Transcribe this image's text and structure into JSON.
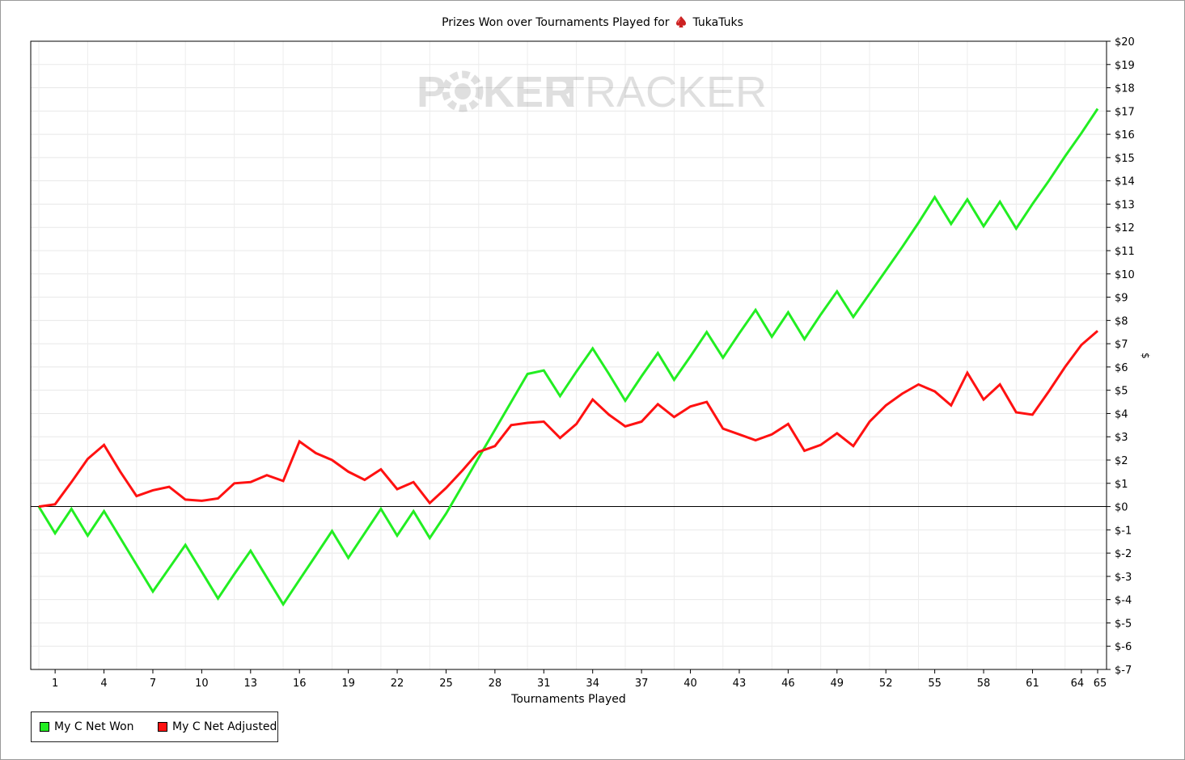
{
  "chart_data": {
    "type": "line",
    "title_prefix": "Prizes Won over Tournaments Played for",
    "player": "TukaTuks",
    "watermark": {
      "left": "P",
      "mid": "KER",
      "right": "TRACKER"
    },
    "xlabel": "Tournaments Played",
    "ylabel": "$",
    "xlim": [
      0,
      65
    ],
    "ylim": [
      -7,
      20
    ],
    "x_ticks": [
      1,
      4,
      7,
      10,
      13,
      16,
      19,
      22,
      25,
      28,
      31,
      34,
      37,
      40,
      43,
      46,
      49,
      52,
      55,
      58,
      61,
      64,
      65
    ],
    "y_ticks": [
      -7,
      -6,
      -5,
      -4,
      -3,
      -2,
      -1,
      0,
      1,
      2,
      3,
      4,
      5,
      6,
      7,
      8,
      9,
      10,
      11,
      12,
      13,
      14,
      15,
      16,
      17,
      18,
      19,
      20
    ],
    "y_tick_labels": [
      "$-7",
      "$-6",
      "$-5",
      "$-4",
      "$-3",
      "$-2",
      "$-1",
      "$0",
      "$1",
      "$2",
      "$3",
      "$4",
      "$5",
      "$6",
      "$7",
      "$8",
      "$9",
      "$10",
      "$11",
      "$12",
      "$13",
      "$14",
      "$15",
      "$16",
      "$17",
      "$18",
      "$19",
      "$20"
    ],
    "grid": true,
    "legend_position": "bottom-left",
    "series": [
      {
        "name": "My C Net Won",
        "color": "#22ee22",
        "x": [
          0,
          1,
          2,
          3,
          4,
          5,
          6,
          7,
          8,
          9,
          10,
          11,
          12,
          13,
          14,
          15,
          16,
          17,
          18,
          19,
          20,
          21,
          22,
          23,
          24,
          25,
          26,
          27,
          28,
          29,
          30,
          31,
          32,
          33,
          34,
          35,
          36,
          37,
          38,
          39,
          40,
          41,
          42,
          43,
          44,
          45,
          46,
          47,
          48,
          49,
          50,
          51,
          52,
          53,
          54,
          55,
          56,
          57,
          58,
          59,
          60,
          61,
          62,
          63,
          64,
          65
        ],
        "values": [
          0,
          -1.15,
          -0.1,
          -1.25,
          -0.2,
          -1.35,
          -2.5,
          -3.65,
          -2.65,
          -1.65,
          -2.8,
          -3.95,
          -2.9,
          -1.9,
          -3.05,
          -4.2,
          -3.15,
          -2.1,
          -1.05,
          -2.2,
          -1.15,
          -0.1,
          -1.25,
          -0.2,
          -1.35,
          -0.3,
          0.9,
          2.1,
          3.3,
          4.5,
          5.7,
          5.85,
          4.75,
          5.8,
          6.8,
          5.7,
          4.55,
          5.6,
          6.6,
          5.45,
          6.45,
          7.5,
          6.4,
          7.45,
          8.45,
          7.3,
          8.35,
          7.2,
          8.25,
          9.25,
          8.15,
          9.15,
          10.15,
          11.15,
          12.2,
          13.3,
          12.15,
          13.2,
          12.05,
          13.1,
          11.95,
          13,
          14,
          15.05,
          16.05,
          17.1
        ]
      },
      {
        "name": "My C Net Adjusted",
        "color": "#ff1111",
        "x": [
          0,
          1,
          2,
          3,
          4,
          5,
          6,
          7,
          8,
          9,
          10,
          11,
          12,
          13,
          14,
          15,
          16,
          17,
          18,
          19,
          20,
          21,
          22,
          23,
          24,
          25,
          26,
          27,
          28,
          29,
          30,
          31,
          32,
          33,
          34,
          35,
          36,
          37,
          38,
          39,
          40,
          41,
          42,
          43,
          44,
          45,
          46,
          47,
          48,
          49,
          50,
          51,
          52,
          53,
          54,
          55,
          56,
          57,
          58,
          59,
          60,
          61,
          62,
          63,
          64,
          65
        ],
        "values": [
          0,
          0.1,
          1.05,
          2.05,
          2.65,
          1.5,
          0.45,
          0.7,
          0.85,
          0.3,
          0.25,
          0.35,
          1,
          1.05,
          1.35,
          1.1,
          2.8,
          2.3,
          2,
          1.5,
          1.15,
          1.6,
          0.75,
          1.05,
          0.15,
          0.8,
          1.55,
          2.35,
          2.6,
          3.5,
          3.6,
          3.65,
          2.95,
          3.55,
          4.6,
          3.95,
          3.45,
          3.65,
          4.4,
          3.85,
          4.3,
          4.5,
          3.35,
          3.1,
          2.85,
          3.1,
          3.55,
          2.4,
          2.65,
          3.15,
          2.6,
          3.65,
          4.35,
          4.85,
          5.25,
          4.95,
          4.35,
          5.75,
          4.6,
          5.25,
          4.05,
          3.95,
          4.95,
          6,
          6.95,
          7.55
        ]
      }
    ]
  }
}
